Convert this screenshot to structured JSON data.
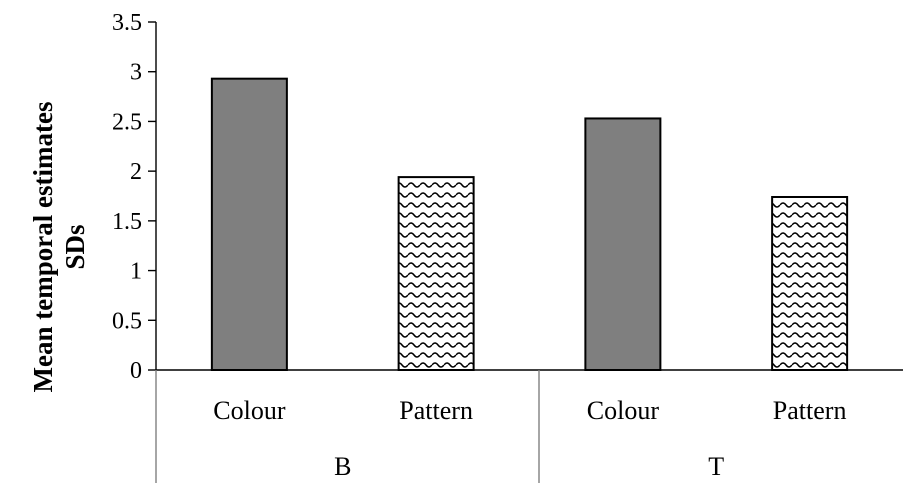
{
  "chart_data": {
    "type": "bar",
    "ylabel_lines": [
      "Mean temporal estimates",
      "SDs"
    ],
    "xlabel": "",
    "title": "",
    "ylim": [
      0,
      3.5
    ],
    "yticks": [
      0,
      0.5,
      1,
      1.5,
      2,
      2.5,
      3,
      3.5
    ],
    "ytick_labels": [
      "0",
      "0.5",
      "1",
      "1.5",
      "2",
      "2.5",
      "3",
      "3.5"
    ],
    "grid": false,
    "legend": "none",
    "groups": [
      {
        "name": "B",
        "categories": [
          {
            "label": "Colour",
            "value": 2.93,
            "fill": "solid-grey"
          },
          {
            "label": "Pattern",
            "value": 1.94,
            "fill": "wave-pattern"
          }
        ]
      },
      {
        "name": "T",
        "categories": [
          {
            "label": "Colour",
            "value": 2.53,
            "fill": "solid-grey"
          },
          {
            "label": "Pattern",
            "value": 1.74,
            "fill": "wave-pattern"
          }
        ]
      }
    ],
    "colors": {
      "bar_grey": "#7f7f7f",
      "pattern_ink": "#000000",
      "pattern_bg": "#ffffff",
      "separator": "#7f7f7f"
    }
  }
}
